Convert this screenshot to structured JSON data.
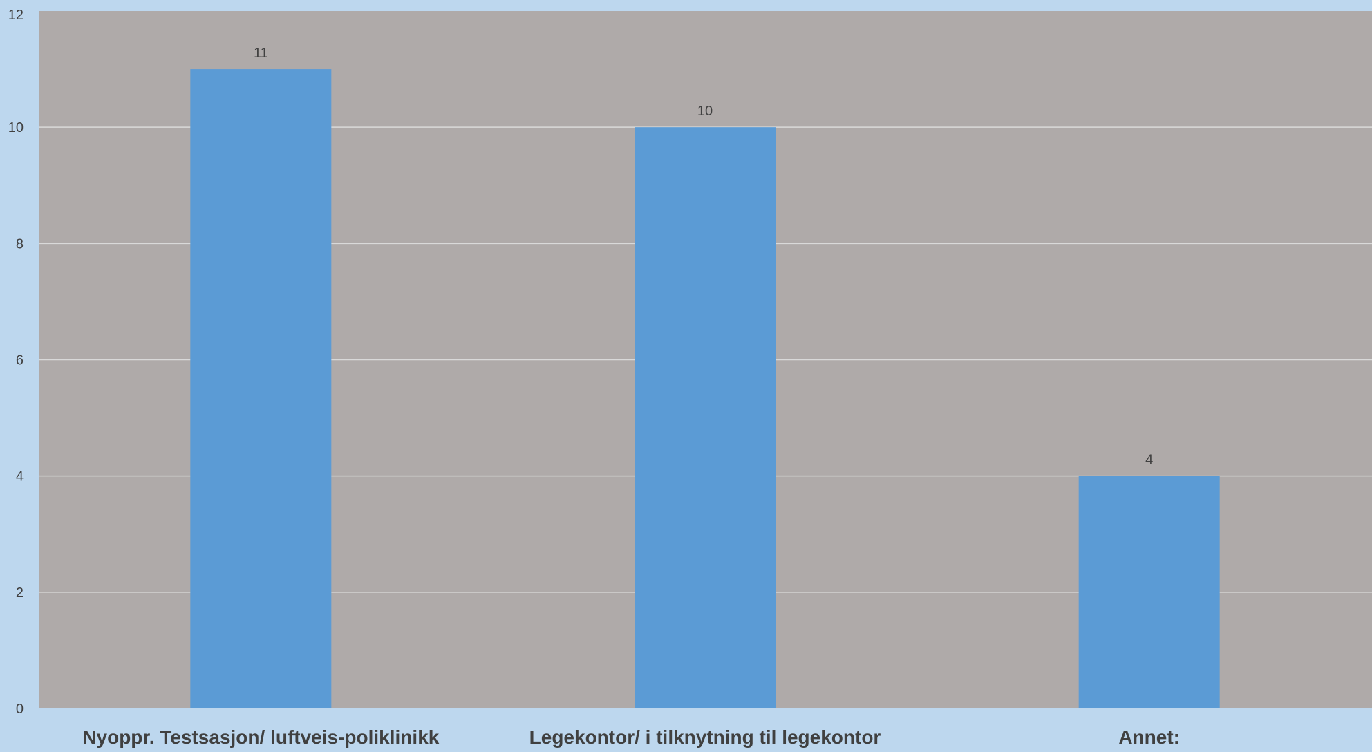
{
  "colors": {
    "page_background": "#bdd7ee",
    "plot_background": "#afaaa9",
    "bar": "#5b9bd5",
    "gridline": "#d9d9d9",
    "text": "#404040"
  },
  "chart_data": {
    "type": "bar",
    "categories": [
      "Nyoppr. Testsasjon/ luftveis-poliklinikk",
      "Legekontor/ i tilknytning til legekontor",
      "Annet:"
    ],
    "values": [
      11,
      10,
      4
    ],
    "data_labels": [
      "11",
      "10",
      "4"
    ],
    "ylim": [
      0,
      12
    ],
    "yticks": [
      0,
      2,
      4,
      6,
      8,
      10,
      12
    ],
    "grid": true,
    "legend": "none",
    "title": "",
    "xlabel": "",
    "ylabel": ""
  }
}
